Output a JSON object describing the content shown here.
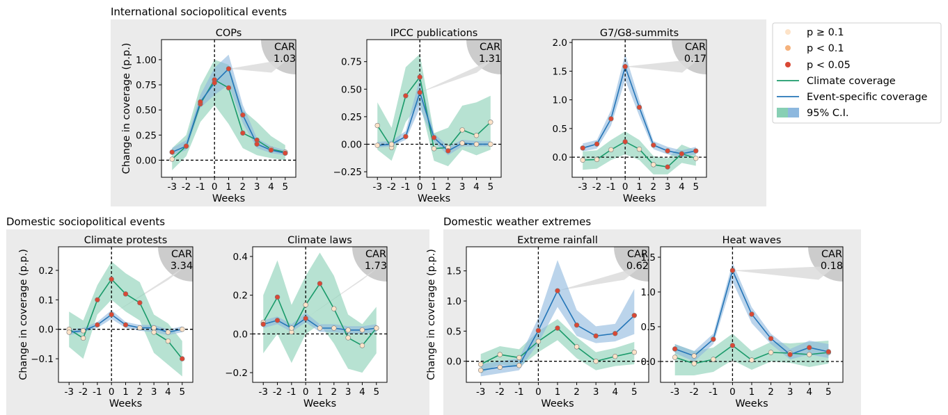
{
  "colors": {
    "climate_line": "#1a9a6a",
    "event_line": "#2475b7",
    "climate_band": "#87cfb4",
    "event_band": "#8db8de",
    "p_ge_01": "#fde3c8",
    "p_lt_01": "#f5b27c",
    "p_lt_005": "#d94835",
    "group_bg": "#ebebeb",
    "car_bg": "#cccccc"
  },
  "groups": [
    {
      "title": "International sociopolitical events"
    },
    {
      "title": "Domestic sociopolitical events"
    },
    {
      "title": "Domestic weather extremes"
    }
  ],
  "legend": {
    "items": [
      {
        "kind": "marker",
        "label": "p ≥ 0.1",
        "color": "#fde3c8"
      },
      {
        "kind": "marker",
        "label": "p < 0.1",
        "color": "#f5b27c"
      },
      {
        "kind": "marker",
        "label": "p < 0.05",
        "color": "#d94835"
      },
      {
        "kind": "line",
        "label": "Climate coverage",
        "color": "#1a9a6a"
      },
      {
        "kind": "line",
        "label": "Event-specific coverage",
        "color": "#2475b7"
      },
      {
        "kind": "band",
        "label": "95% C.I."
      }
    ]
  },
  "chart_data": [
    {
      "type": "line",
      "title": "COPs",
      "group": 0,
      "xlabel": "Weeks",
      "ylabel": "Change in coverage (p.p.)",
      "x": [
        -3,
        -2,
        -1,
        0,
        1,
        2,
        3,
        4,
        5
      ],
      "ylim": [
        -0.17,
        1.2
      ],
      "yticks": [
        0.0,
        0.25,
        0.5,
        0.75,
        1.0
      ],
      "ytick_labels": [
        "0.00",
        "0.25",
        "0.50",
        "0.75",
        "1.00"
      ],
      "car_label": "CAR",
      "car_value": "1.03",
      "series": [
        {
          "name": "Climate coverage",
          "values": [
            0.01,
            0.14,
            0.56,
            0.8,
            0.72,
            0.27,
            0.2,
            0.11,
            0.08
          ],
          "ci_low": [
            -0.1,
            0.04,
            0.38,
            0.55,
            0.36,
            0.12,
            0.05,
            0.02,
            0.0
          ],
          "ci_high": [
            0.12,
            0.25,
            0.74,
            1.0,
            0.95,
            0.5,
            0.38,
            0.24,
            0.15
          ],
          "p": [
            1,
            3,
            3,
            3,
            3,
            3,
            3,
            1,
            1
          ]
        },
        {
          "name": "Event-specific coverage",
          "values": [
            0.08,
            0.14,
            0.58,
            0.77,
            0.91,
            0.45,
            0.16,
            0.1,
            0.07
          ],
          "ci_low": [
            0.05,
            0.1,
            0.52,
            0.65,
            0.75,
            0.37,
            0.12,
            0.07,
            0.05
          ],
          "ci_high": [
            0.12,
            0.2,
            0.65,
            0.92,
            1.05,
            0.55,
            0.22,
            0.14,
            0.1
          ],
          "p": [
            3,
            3,
            3,
            3,
            3,
            3,
            3,
            3,
            3
          ]
        }
      ]
    },
    {
      "type": "line",
      "title": "IPCC publications",
      "group": 0,
      "xlabel": "Weeks",
      "ylabel": "",
      "x": [
        -3,
        -2,
        -1,
        0,
        1,
        2,
        3,
        4,
        5
      ],
      "ylim": [
        -0.3,
        0.95
      ],
      "yticks": [
        -0.25,
        0.0,
        0.25,
        0.5,
        0.75
      ],
      "ytick_labels": [
        "−0.25",
        "0.00",
        "0.25",
        "0.50",
        "0.75"
      ],
      "car_label": "CAR",
      "car_value": "1.31",
      "series": [
        {
          "name": "Climate coverage",
          "values": [
            0.17,
            -0.03,
            0.44,
            0.61,
            -0.04,
            -0.03,
            0.13,
            0.08,
            0.2
          ],
          "ci_low": [
            -0.05,
            -0.15,
            0.2,
            0.38,
            -0.15,
            -0.2,
            -0.05,
            -0.1,
            -0.05
          ],
          "ci_high": [
            0.38,
            0.15,
            0.7,
            0.82,
            0.1,
            0.15,
            0.35,
            0.38,
            0.44
          ],
          "p": [
            1,
            1,
            3,
            3,
            1,
            1,
            1,
            1,
            1
          ]
        },
        {
          "name": "Event-specific coverage",
          "values": [
            -0.01,
            0.0,
            0.07,
            0.47,
            0.06,
            -0.06,
            0.01,
            0.0,
            0.0
          ],
          "ci_low": [
            -0.03,
            -0.02,
            0.04,
            0.33,
            0.02,
            -0.1,
            -0.02,
            -0.02,
            -0.02
          ],
          "ci_high": [
            0.02,
            0.03,
            0.12,
            0.6,
            0.1,
            -0.02,
            0.04,
            0.03,
            0.03
          ],
          "p": [
            1,
            1,
            3,
            3,
            3,
            3,
            1,
            1,
            1
          ]
        }
      ]
    },
    {
      "type": "line",
      "title": "G7/G8-summits",
      "group": 0,
      "xlabel": "Weeks",
      "ylabel": "",
      "x": [
        -3,
        -2,
        -1,
        0,
        1,
        2,
        3,
        4,
        5
      ],
      "ylim": [
        -0.35,
        2.05
      ],
      "yticks": [
        0.0,
        0.5,
        1.0,
        1.5,
        2.0
      ],
      "ytick_labels": [
        "0.0",
        "0.5",
        "1.0",
        "1.5",
        "2.0"
      ],
      "car_label": "CAR",
      "car_value": "0.17",
      "series": [
        {
          "name": "Climate coverage",
          "values": [
            -0.05,
            -0.04,
            0.13,
            0.27,
            0.14,
            -0.13,
            -0.17,
            0.06,
            -0.02
          ],
          "ci_low": [
            -0.22,
            -0.2,
            -0.05,
            0.05,
            -0.05,
            -0.3,
            -0.3,
            -0.1,
            -0.15
          ],
          "ci_high": [
            0.1,
            0.12,
            0.3,
            0.45,
            0.3,
            0.02,
            -0.02,
            0.22,
            0.12
          ],
          "p": [
            1,
            1,
            1,
            3,
            1,
            1,
            3,
            1,
            1
          ]
        },
        {
          "name": "Event-specific coverage",
          "values": [
            0.16,
            0.23,
            0.67,
            1.58,
            0.87,
            0.21,
            0.11,
            0.06,
            0.11
          ],
          "ci_low": [
            0.1,
            0.15,
            0.55,
            1.35,
            0.72,
            0.14,
            0.05,
            0.0,
            0.05
          ],
          "ci_high": [
            0.24,
            0.3,
            0.82,
            1.8,
            1.0,
            0.28,
            0.18,
            0.12,
            0.18
          ],
          "p": [
            3,
            3,
            3,
            3,
            3,
            3,
            3,
            3,
            3
          ]
        }
      ]
    },
    {
      "type": "line",
      "title": "Climate protests",
      "group": 1,
      "xlabel": "Weeks",
      "ylabel": "Change in coverage (p.p.)",
      "x": [
        -3,
        -2,
        -1,
        0,
        1,
        2,
        3,
        4,
        5
      ],
      "ylim": [
        -0.18,
        0.28
      ],
      "yticks": [
        -0.1,
        0.0,
        0.1,
        0.2
      ],
      "ytick_labels": [
        "−0.1",
        "0.0",
        "0.1",
        "0.2"
      ],
      "car_label": "CAR",
      "car_value": "3.34",
      "series": [
        {
          "name": "Climate coverage",
          "values": [
            0.0,
            -0.03,
            0.1,
            0.17,
            0.12,
            0.09,
            -0.01,
            -0.04,
            -0.1
          ],
          "ci_low": [
            -0.06,
            -0.1,
            0.05,
            0.1,
            0.06,
            0.03,
            -0.08,
            -0.12,
            -0.16
          ],
          "ci_high": [
            0.06,
            0.03,
            0.15,
            0.23,
            0.19,
            0.16,
            0.05,
            0.02,
            -0.04
          ],
          "p": [
            1,
            1,
            3,
            3,
            3,
            3,
            1,
            1,
            3
          ]
        },
        {
          "name": "Event-specific coverage",
          "values": [
            -0.01,
            -0.005,
            0.015,
            0.05,
            0.015,
            0.005,
            0.005,
            -0.01,
            0.0
          ],
          "ci_low": [
            -0.02,
            -0.01,
            0.005,
            0.035,
            0.005,
            -0.005,
            -0.01,
            -0.02,
            -0.01
          ],
          "ci_high": [
            0.0,
            0.005,
            0.025,
            0.065,
            0.025,
            0.015,
            0.015,
            0.0,
            0.01
          ],
          "p": [
            1,
            1,
            3,
            3,
            3,
            1,
            1,
            1,
            1
          ]
        }
      ]
    },
    {
      "type": "line",
      "title": "Climate laws",
      "group": 1,
      "xlabel": "Weeks",
      "ylabel": "",
      "x": [
        -3,
        -2,
        -1,
        0,
        1,
        2,
        3,
        4,
        5
      ],
      "ylim": [
        -0.25,
        0.45
      ],
      "yticks": [
        -0.2,
        0.0,
        0.2,
        0.4
      ],
      "ytick_labels": [
        "−0.2",
        "0.0",
        "0.2",
        "0.4"
      ],
      "car_label": "CAR",
      "car_value": "1.73",
      "series": [
        {
          "name": "Climate coverage",
          "values": [
            0.06,
            0.19,
            0.01,
            0.15,
            0.26,
            0.13,
            -0.02,
            -0.06,
            0.03
          ],
          "ci_low": [
            -0.1,
            0.0,
            -0.15,
            0.0,
            0.05,
            -0.05,
            -0.18,
            -0.2,
            -0.1
          ],
          "ci_high": [
            0.2,
            0.38,
            0.15,
            0.3,
            0.42,
            0.3,
            0.1,
            0.05,
            0.14
          ],
          "p": [
            1,
            3,
            1,
            1,
            3,
            1,
            1,
            1,
            1
          ]
        },
        {
          "name": "Event-specific coverage",
          "values": [
            0.05,
            0.07,
            0.03,
            0.08,
            0.03,
            0.03,
            0.02,
            0.02,
            0.03
          ],
          "ci_low": [
            0.03,
            0.05,
            0.01,
            0.06,
            0.01,
            0.01,
            0.0,
            0.0,
            0.01
          ],
          "ci_high": [
            0.07,
            0.09,
            0.05,
            0.11,
            0.05,
            0.05,
            0.04,
            0.04,
            0.05
          ],
          "p": [
            3,
            3,
            1,
            3,
            1,
            1,
            1,
            1,
            1
          ]
        }
      ]
    },
    {
      "type": "line",
      "title": "Extreme rainfall",
      "group": 2,
      "xlabel": "Weeks",
      "ylabel": "Change in coverage (p.p.)",
      "x": [
        -3,
        -2,
        -1,
        0,
        1,
        2,
        3,
        4,
        5
      ],
      "ylim": [
        -0.35,
        1.9
      ],
      "yticks": [
        0.0,
        0.5,
        1.0,
        1.5
      ],
      "ytick_labels": [
        "0.0",
        "0.5",
        "1.0",
        "1.5"
      ],
      "car_label": "CAR",
      "car_value": "0.62",
      "series": [
        {
          "name": "Climate coverage",
          "values": [
            -0.05,
            0.11,
            0.06,
            0.33,
            0.55,
            0.24,
            0.0,
            0.08,
            0.15
          ],
          "ci_low": [
            -0.2,
            -0.05,
            -0.1,
            0.15,
            0.35,
            0.05,
            -0.15,
            -0.08,
            -0.05
          ],
          "ci_high": [
            0.12,
            0.25,
            0.2,
            0.5,
            0.7,
            0.4,
            0.15,
            0.22,
            0.32
          ],
          "p": [
            1,
            1,
            1,
            1,
            3,
            1,
            1,
            1,
            1
          ]
        },
        {
          "name": "Event-specific coverage",
          "values": [
            -0.15,
            -0.1,
            -0.07,
            0.51,
            1.17,
            0.6,
            0.42,
            0.46,
            0.76
          ],
          "ci_low": [
            -0.25,
            -0.2,
            -0.15,
            0.3,
            0.9,
            0.42,
            0.3,
            0.33,
            0.45
          ],
          "ci_high": [
            -0.05,
            0.0,
            0.05,
            0.72,
            1.68,
            0.85,
            0.58,
            0.62,
            1.2
          ],
          "p": [
            1,
            1,
            1,
            3,
            3,
            3,
            3,
            3,
            3
          ]
        }
      ]
    },
    {
      "type": "line",
      "title": "Heat waves",
      "group": 2,
      "xlabel": "Weeks",
      "ylabel": "",
      "x": [
        -3,
        -2,
        -1,
        0,
        1,
        2,
        3,
        4,
        5
      ],
      "ylim": [
        -0.3,
        1.65
      ],
      "yticks": [
        0.0,
        0.5,
        1.0,
        1.5
      ],
      "ytick_labels": [
        "0.0",
        "0.5",
        "1.0",
        "1.5"
      ],
      "car_label": "CAR",
      "car_value": "0.18",
      "series": [
        {
          "name": "Climate coverage",
          "values": [
            0.06,
            -0.03,
            0.03,
            0.23,
            0.02,
            0.13,
            0.12,
            0.1,
            0.13
          ],
          "ci_low": [
            -0.2,
            -0.2,
            -0.15,
            0.02,
            -0.12,
            0.0,
            -0.02,
            -0.08,
            -0.03
          ],
          "ci_high": [
            0.25,
            0.15,
            0.2,
            0.4,
            0.15,
            0.28,
            0.26,
            0.28,
            0.3
          ],
          "p": [
            1,
            1,
            1,
            3,
            1,
            1,
            1,
            1,
            1
          ]
        },
        {
          "name": "Event-specific coverage",
          "values": [
            0.18,
            0.08,
            0.32,
            1.31,
            0.68,
            0.33,
            0.1,
            0.2,
            0.14
          ],
          "ci_low": [
            0.12,
            0.0,
            0.25,
            1.15,
            0.55,
            0.25,
            0.03,
            0.1,
            0.05
          ],
          "ci_high": [
            0.25,
            0.15,
            0.4,
            1.42,
            0.78,
            0.4,
            0.18,
            0.3,
            0.25
          ],
          "p": [
            3,
            1,
            3,
            3,
            3,
            3,
            3,
            3,
            3
          ]
        }
      ]
    }
  ]
}
